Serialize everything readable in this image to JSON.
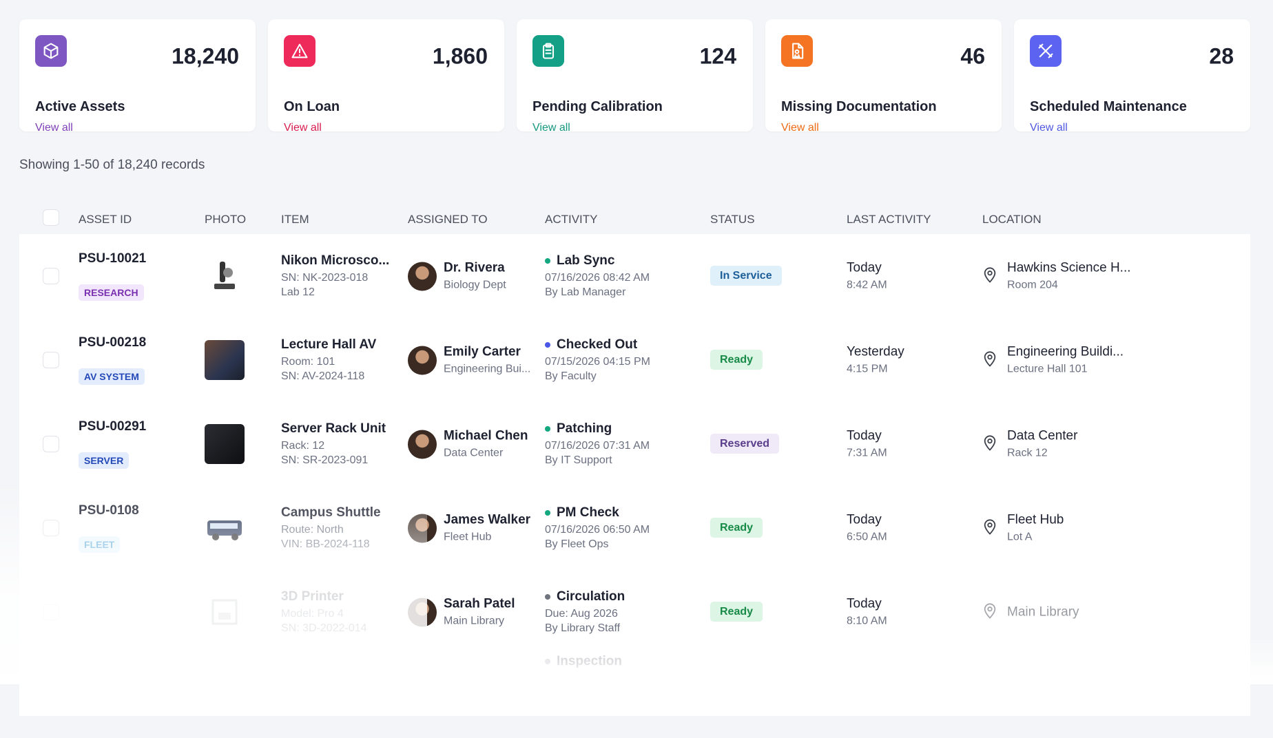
{
  "cards": [
    {
      "value": "18,240",
      "label": "Active Assets",
      "link": "View all"
    },
    {
      "value": "1,860",
      "label": "On Loan",
      "link": "View all"
    },
    {
      "value": "124",
      "label": "Pending Calibration",
      "link": "View all"
    },
    {
      "value": "46",
      "label": "Missing Documentation",
      "link": "View all"
    },
    {
      "value": "28",
      "label": "Scheduled Maintenance",
      "link": "View all"
    }
  ],
  "summary": "Showing 1-50 of 18,240 records",
  "table": {
    "headers": [
      "ASSET ID",
      "PHOTO",
      "ITEM",
      "ASSIGNED TO",
      "ACTIVITY",
      "STATUS",
      "LAST ACTIVITY",
      "LOCATION"
    ],
    "rows": [
      {
        "asset_id": "PSU-10021",
        "tag": "RESEARCH",
        "item": "Nikon Microsco...",
        "item_lines": [
          "SN: NK-2023-018",
          "Lab 12"
        ],
        "person": "Dr. Rivera",
        "dept": "Biology Dept",
        "activity": "Lab Sync",
        "activity_lines": [
          "07/16/2026 08:42 AM",
          "By Lab Manager"
        ],
        "status": "In Service",
        "last": "Today",
        "last_time": "8:42 AM",
        "location": "Hawkins Science H...",
        "location_sub": "Room 204"
      },
      {
        "asset_id": "PSU-00218",
        "tag": "AV SYSTEM",
        "item": "Lecture Hall AV",
        "item_lines": [
          "Room: 101",
          "SN: AV-2024-118"
        ],
        "person": "Emily Carter",
        "dept": "Engineering Bui...",
        "activity": "Checked Out",
        "activity_lines": [
          "07/15/2026 04:15 PM",
          "By Faculty"
        ],
        "status": "Ready",
        "last": "Yesterday",
        "last_time": "4:15 PM",
        "location": "Engineering Buildi...",
        "location_sub": "Lecture Hall 101"
      },
      {
        "asset_id": "PSU-00291",
        "tag": "SERVER",
        "item": "Server Rack Unit",
        "item_lines": [
          "Rack: 12",
          "SN: SR-2023-091"
        ],
        "person": "Michael Chen",
        "dept": "Data Center",
        "activity": "Patching",
        "activity_lines": [
          "07/16/2026 07:31 AM",
          "By IT Support"
        ],
        "status": "Reserved",
        "last": "Today",
        "last_time": "7:31 AM",
        "location": "Data Center",
        "location_sub": "Rack 12"
      },
      {
        "asset_id": "PSU-0108",
        "tag": "FLEET",
        "item": "Campus Shuttle",
        "item_lines": [
          "Route: North",
          "VIN: BB-2024-118"
        ],
        "person": "James Walker",
        "dept": "Fleet Hub",
        "activity": "PM Check",
        "activity_lines": [
          "07/16/2026 06:50 AM",
          "By Fleet Ops"
        ],
        "status": "Ready",
        "last": "Today",
        "last_time": "6:50 AM",
        "location": "Fleet Hub",
        "location_sub": "Lot A"
      },
      {
        "item": "3D Printer",
        "item_lines": [
          "Model: Pro 4",
          "SN: 3D-2022-014"
        ],
        "person": "Sarah Patel",
        "dept": "Main Library",
        "activity": "Circulation",
        "activity_lines": [
          "Due: Aug 2026",
          "By Library Staff"
        ],
        "status": "Ready",
        "last": "Today",
        "last_time": "8:10 AM",
        "location": "Main Library"
      },
      {
        "activity": "Inspection"
      }
    ]
  }
}
